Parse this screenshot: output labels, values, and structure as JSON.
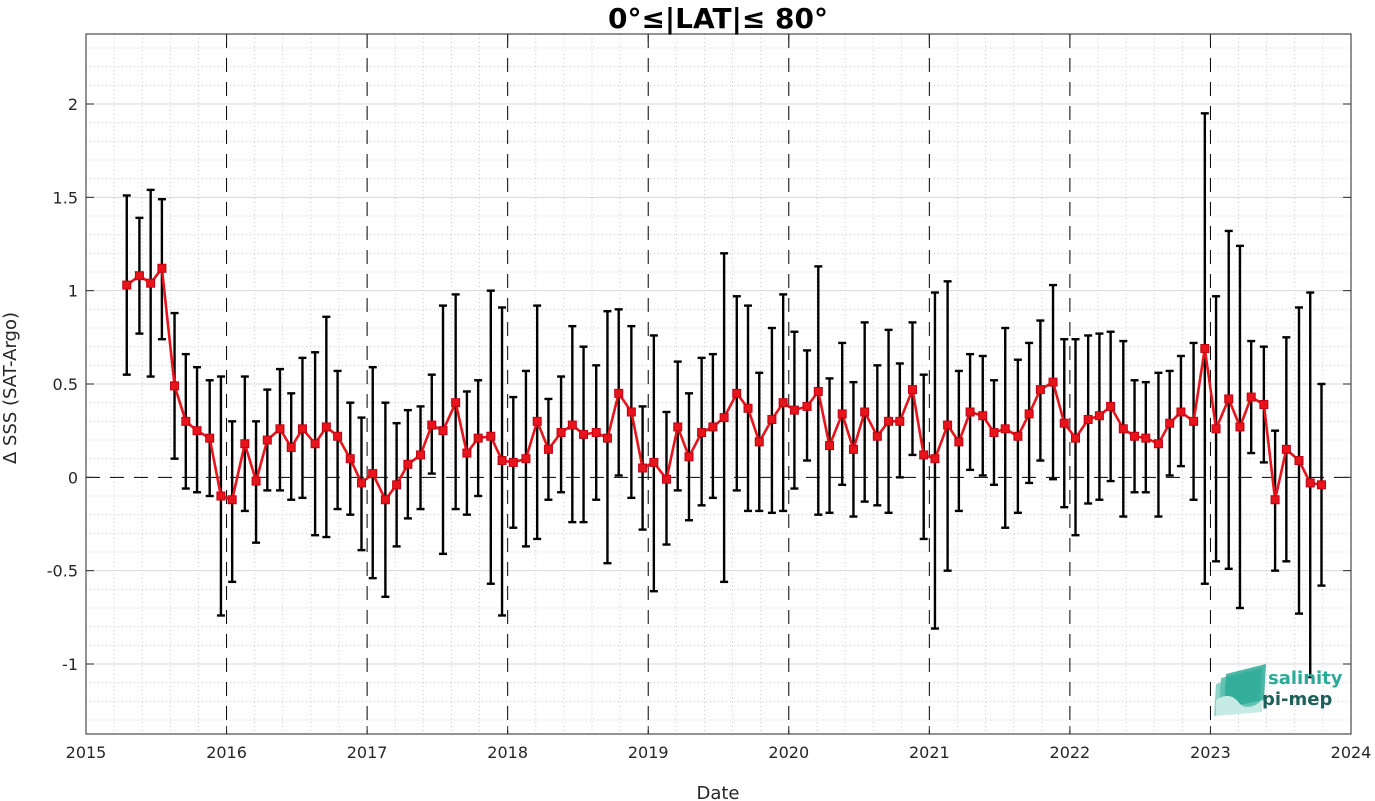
{
  "chart_data": {
    "type": "line",
    "title": "0°≤|LAT|≤ 80°",
    "xlabel": "Date",
    "ylabel": "Δ SSS (SAT-Argo)",
    "xlim": [
      2015,
      2024
    ],
    "ylim": [
      -1.375,
      2.375
    ],
    "xticks": [
      "2015",
      "2016",
      "2017",
      "2018",
      "2019",
      "2020",
      "2021",
      "2022",
      "2023",
      "2024"
    ],
    "yticks": [
      "-1",
      "-0.5",
      "0",
      "0.5",
      "1",
      "1.5",
      "2"
    ],
    "grid": true,
    "line_color": "#e8141b",
    "errorbar_color": "#000000",
    "series": [
      {
        "x": [
          2015.29,
          2015.38,
          2015.46,
          2015.54,
          2015.63,
          2015.71,
          2015.79,
          2015.88,
          2015.96,
          2016.04,
          2016.13,
          2016.21,
          2016.29,
          2016.38,
          2016.46,
          2016.54,
          2016.63,
          2016.71,
          2016.79,
          2016.88,
          2016.96,
          2017.04,
          2017.13,
          2017.21,
          2017.29,
          2017.38,
          2017.46,
          2017.54,
          2017.63,
          2017.71,
          2017.79,
          2017.88,
          2017.96,
          2018.04,
          2018.13,
          2018.21,
          2018.29,
          2018.38,
          2018.46,
          2018.54,
          2018.63,
          2018.71,
          2018.79,
          2018.88,
          2018.96,
          2019.04,
          2019.13,
          2019.21,
          2019.29,
          2019.38,
          2019.46,
          2019.54,
          2019.63,
          2019.71,
          2019.79,
          2019.88,
          2019.96,
          2020.04,
          2020.13,
          2020.21,
          2020.29,
          2020.38,
          2020.46,
          2020.54,
          2020.63,
          2020.71,
          2020.79,
          2020.88,
          2020.96,
          2021.04,
          2021.13,
          2021.21,
          2021.29,
          2021.38,
          2021.46,
          2021.54,
          2021.63,
          2021.71,
          2021.79,
          2021.88,
          2021.96,
          2022.04,
          2022.13,
          2022.21,
          2022.29,
          2022.38,
          2022.46,
          2022.54,
          2022.63,
          2022.71,
          2022.79,
          2022.88,
          2022.96,
          2023.04,
          2023.13,
          2023.21,
          2023.29,
          2023.38,
          2023.46,
          2023.54,
          2023.63,
          2023.71,
          2023.79
        ],
        "y": [
          1.03,
          1.08,
          1.04,
          1.12,
          0.49,
          0.3,
          0.25,
          0.21,
          -0.1,
          -0.12,
          0.18,
          -0.02,
          0.2,
          0.26,
          0.16,
          0.26,
          0.18,
          0.27,
          0.22,
          0.1,
          -0.03,
          0.02,
          -0.12,
          -0.04,
          0.07,
          0.12,
          0.28,
          0.25,
          0.4,
          0.13,
          0.21,
          0.22,
          0.09,
          0.08,
          0.1,
          0.3,
          0.15,
          0.24,
          0.28,
          0.23,
          0.24,
          0.21,
          0.45,
          0.35,
          0.05,
          0.08,
          -0.01,
          0.27,
          0.11,
          0.24,
          0.27,
          0.32,
          0.45,
          0.37,
          0.19,
          0.31,
          0.4,
          0.36,
          0.38,
          0.46,
          0.17,
          0.34,
          0.15,
          0.35,
          0.22,
          0.3,
          0.3,
          0.47,
          0.12,
          0.1,
          0.28,
          0.19,
          0.35,
          0.33,
          0.24,
          0.26,
          0.22,
          0.34,
          0.47,
          0.51,
          0.29,
          0.21,
          0.31,
          0.33,
          0.38,
          0.26,
          0.22,
          0.21,
          0.18,
          0.29,
          0.35,
          0.3,
          0.69,
          0.26,
          0.42,
          0.27,
          0.43,
          0.39,
          -0.12,
          0.15,
          0.09,
          -0.03,
          -0.04
        ],
        "lower": [
          0.55,
          0.77,
          0.54,
          0.74,
          0.1,
          -0.06,
          -0.08,
          -0.1,
          -0.74,
          -0.56,
          -0.18,
          -0.35,
          -0.07,
          -0.07,
          -0.12,
          -0.11,
          -0.31,
          -0.32,
          -0.17,
          -0.2,
          -0.39,
          -0.54,
          -0.64,
          -0.37,
          -0.22,
          -0.17,
          0.02,
          -0.41,
          -0.17,
          -0.2,
          -0.1,
          -0.57,
          -0.74,
          -0.27,
          -0.37,
          -0.33,
          -0.12,
          -0.08,
          -0.24,
          -0.24,
          -0.12,
          -0.46,
          0.01,
          -0.11,
          -0.28,
          -0.61,
          -0.36,
          -0.07,
          -0.23,
          -0.15,
          -0.11,
          -0.56,
          -0.07,
          -0.18,
          -0.18,
          -0.19,
          -0.18,
          -0.06,
          0.09,
          -0.2,
          -0.19,
          -0.04,
          -0.21,
          -0.13,
          -0.15,
          -0.19,
          0.0,
          0.12,
          -0.33,
          -0.81,
          -0.5,
          -0.18,
          0.04,
          0.01,
          -0.04,
          -0.27,
          -0.19,
          -0.03,
          0.09,
          -0.01,
          -0.16,
          -0.31,
          -0.14,
          -0.12,
          -0.02,
          -0.21,
          -0.08,
          -0.08,
          -0.21,
          0.01,
          0.06,
          -0.12,
          -0.57,
          -0.45,
          -0.49,
          -0.7,
          0.13,
          0.08,
          -0.5,
          -0.45,
          -0.73,
          -1.07,
          -0.58
        ],
        "upper": [
          1.51,
          1.39,
          1.54,
          1.49,
          0.88,
          0.66,
          0.59,
          0.52,
          0.54,
          0.3,
          0.54,
          0.3,
          0.47,
          0.58,
          0.45,
          0.64,
          0.67,
          0.86,
          0.57,
          0.4,
          0.32,
          0.59,
          0.4,
          0.29,
          0.36,
          0.38,
          0.55,
          0.92,
          0.98,
          0.46,
          0.52,
          1.0,
          0.91,
          0.43,
          0.57,
          0.92,
          0.42,
          0.54,
          0.81,
          0.7,
          0.6,
          0.89,
          0.9,
          0.81,
          0.38,
          0.76,
          0.35,
          0.62,
          0.45,
          0.64,
          0.66,
          1.2,
          0.97,
          0.92,
          0.56,
          0.8,
          0.98,
          0.78,
          0.68,
          1.13,
          0.53,
          0.72,
          0.51,
          0.83,
          0.6,
          0.79,
          0.61,
          0.83,
          0.55,
          0.99,
          1.05,
          0.57,
          0.66,
          0.65,
          0.52,
          0.8,
          0.63,
          0.72,
          0.84,
          1.03,
          0.74,
          0.74,
          0.76,
          0.77,
          0.78,
          0.73,
          0.52,
          0.51,
          0.56,
          0.57,
          0.65,
          0.72,
          1.95,
          0.97,
          1.32,
          1.24,
          0.73,
          0.7,
          0.25,
          0.75,
          0.91,
          0.99,
          0.5
        ]
      }
    ]
  },
  "logo": {
    "line1": "salinity",
    "line2": "pi-mep",
    "color1": "#2aaa98",
    "color2": "#1f5f5a"
  }
}
